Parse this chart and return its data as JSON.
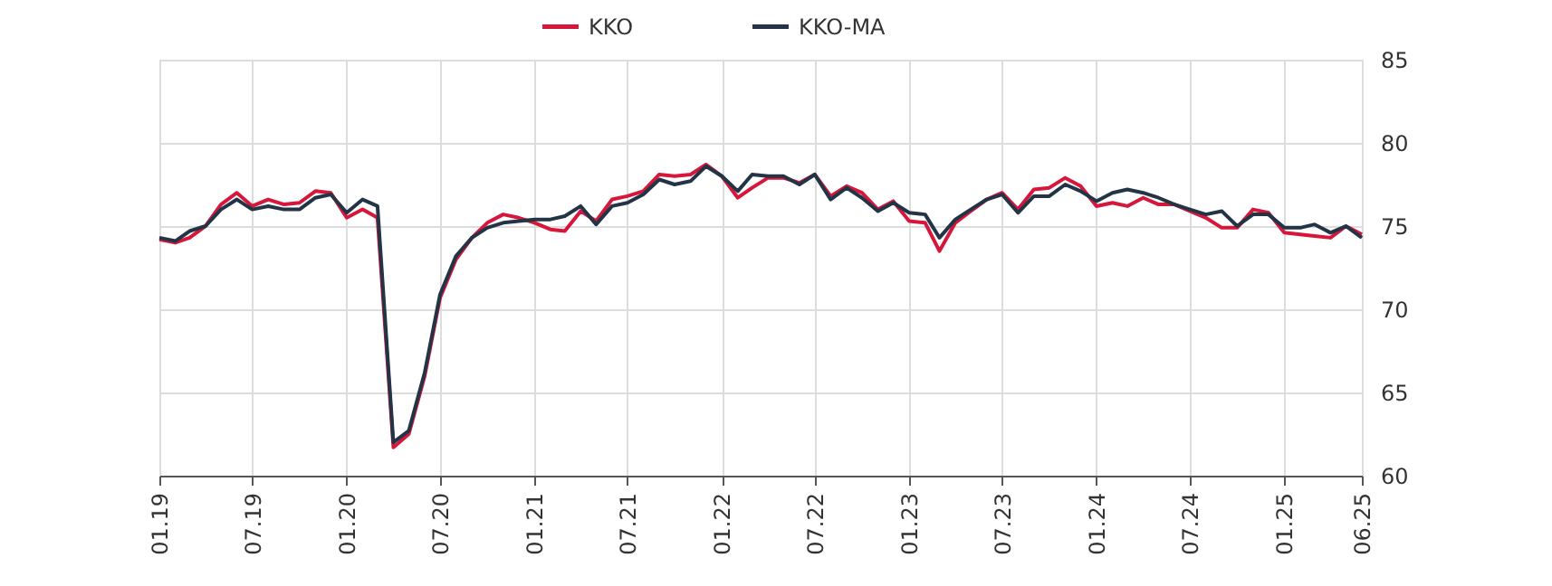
{
  "chart_data": {
    "type": "line",
    "xlim": [
      "2019-01",
      "2025-06"
    ],
    "xticks": [
      {
        "value": "2019-01",
        "label": "01.19"
      },
      {
        "value": "2019-07",
        "label": "07.19"
      },
      {
        "value": "2020-01",
        "label": "01.20"
      },
      {
        "value": "2020-07",
        "label": "07.20"
      },
      {
        "value": "2021-01",
        "label": "01.21"
      },
      {
        "value": "2021-07",
        "label": "07.21"
      },
      {
        "value": "2022-01",
        "label": "01.22"
      },
      {
        "value": "2022-07",
        "label": "07.22"
      },
      {
        "value": "2023-01",
        "label": "01.23"
      },
      {
        "value": "2023-07",
        "label": "07.23"
      },
      {
        "value": "2024-01",
        "label": "01.24"
      },
      {
        "value": "2024-07",
        "label": "07.24"
      },
      {
        "value": "2025-01",
        "label": "01.25"
      },
      {
        "value": "2025-06",
        "label": "06.25"
      }
    ],
    "ylim": [
      60,
      85
    ],
    "yticks": [
      60,
      65,
      70,
      75,
      80,
      85
    ],
    "grid": true,
    "legend": "top",
    "marker": "none",
    "line_style": "solid",
    "x": [
      "2019-01",
      "2019-02",
      "2019-03",
      "2019-04",
      "2019-05",
      "2019-06",
      "2019-07",
      "2019-08",
      "2019-09",
      "2019-10",
      "2019-11",
      "2019-12",
      "2020-01",
      "2020-02",
      "2020-03",
      "2020-04",
      "2020-05",
      "2020-06",
      "2020-07",
      "2020-08",
      "2020-09",
      "2020-10",
      "2020-11",
      "2020-12",
      "2021-01",
      "2021-02",
      "2021-03",
      "2021-04",
      "2021-05",
      "2021-06",
      "2021-07",
      "2021-08",
      "2021-09",
      "2021-10",
      "2021-11",
      "2021-12",
      "2022-01",
      "2022-02",
      "2022-03",
      "2022-04",
      "2022-05",
      "2022-06",
      "2022-07",
      "2022-08",
      "2022-09",
      "2022-10",
      "2022-11",
      "2022-12",
      "2023-01",
      "2023-02",
      "2023-03",
      "2023-04",
      "2023-05",
      "2023-06",
      "2023-07",
      "2023-08",
      "2023-09",
      "2023-10",
      "2023-11",
      "2023-12",
      "2024-01",
      "2024-02",
      "2024-03",
      "2024-04",
      "2024-05",
      "2024-06",
      "2024-07",
      "2024-08",
      "2024-09",
      "2024-10",
      "2024-11",
      "2024-12",
      "2025-01",
      "2025-02",
      "2025-03",
      "2025-04",
      "2025-05",
      "2025-06"
    ],
    "series": [
      {
        "name": "KKO",
        "color": "#d6173b",
        "values": [
          74.2,
          74.0,
          74.3,
          75.0,
          76.3,
          77.0,
          76.2,
          76.6,
          76.3,
          76.4,
          77.1,
          77.0,
          75.5,
          76.0,
          75.5,
          61.7,
          62.5,
          66.0,
          70.7,
          73.0,
          74.3,
          75.2,
          75.7,
          75.5,
          75.2,
          74.8,
          74.7,
          75.9,
          75.3,
          76.6,
          76.8,
          77.1,
          78.1,
          78.0,
          78.1,
          78.7,
          78.0,
          76.7,
          77.3,
          77.9,
          77.9,
          77.6,
          78.1,
          76.8,
          77.4,
          77.0,
          76.0,
          76.5,
          75.3,
          75.2,
          73.5,
          75.2,
          75.9,
          76.6,
          77.0,
          76.0,
          77.2,
          77.3,
          77.9,
          77.4,
          76.2,
          76.4,
          76.2,
          76.7,
          76.3,
          76.3,
          75.9,
          75.5,
          74.9,
          74.9,
          76.0,
          75.8,
          74.6,
          74.5,
          74.4,
          74.3,
          75.0,
          74.5
        ]
      },
      {
        "name": "KKO-MA",
        "color": "#233447",
        "values": [
          74.3,
          74.1,
          74.7,
          75.0,
          76.0,
          76.6,
          76.0,
          76.2,
          76.0,
          76.0,
          76.7,
          76.9,
          75.8,
          76.6,
          76.2,
          62.0,
          62.7,
          66.2,
          70.9,
          73.2,
          74.3,
          74.9,
          75.2,
          75.3,
          75.4,
          75.4,
          75.6,
          76.2,
          75.1,
          76.2,
          76.4,
          76.9,
          77.8,
          77.5,
          77.7,
          78.6,
          78.0,
          77.1,
          78.1,
          78.0,
          78.0,
          77.5,
          78.1,
          76.6,
          77.3,
          76.7,
          75.9,
          76.4,
          75.8,
          75.7,
          74.3,
          75.4,
          76.0,
          76.6,
          76.9,
          75.8,
          76.8,
          76.8,
          77.5,
          77.1,
          76.5,
          77.0,
          77.2,
          77.0,
          76.7,
          76.3,
          76.0,
          75.7,
          75.9,
          75.0,
          75.7,
          75.7,
          74.9,
          74.9,
          75.1,
          74.6,
          75.0,
          74.3
        ]
      }
    ]
  }
}
